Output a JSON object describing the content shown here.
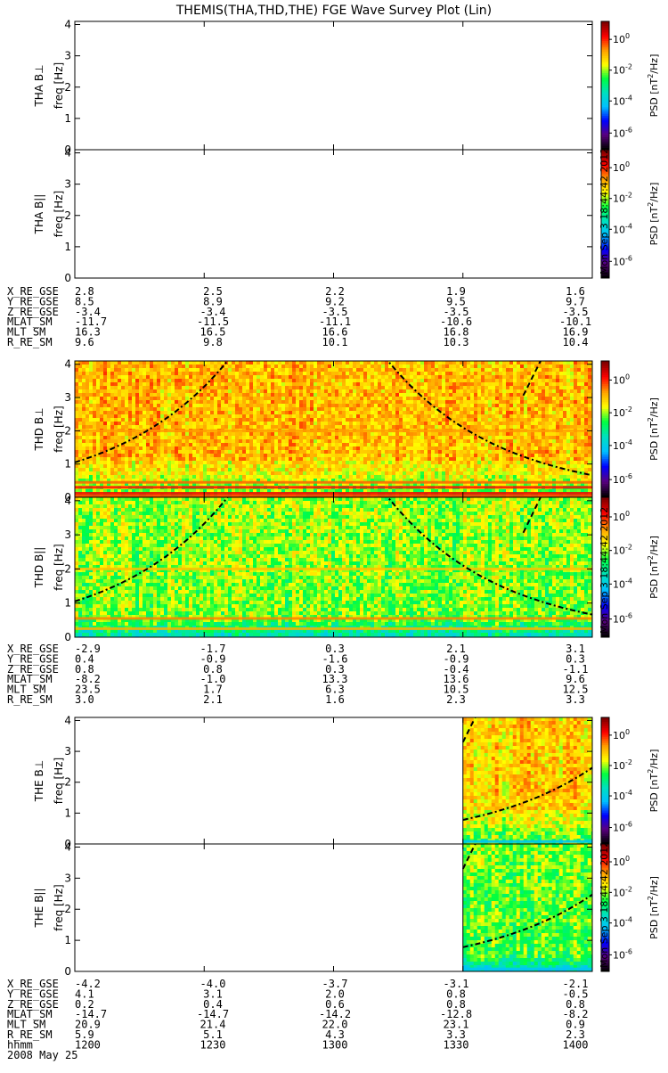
{
  "chart_data": {
    "type": "heatmap",
    "title": "THEMIS(THA,THD,THE) FGE Wave Survey Plot (Lin)",
    "x_unit_label": "hhmm",
    "date": "2008 May 25",
    "x_ticks": [
      "1200",
      "1230",
      "1300",
      "1330",
      "1400"
    ],
    "xlim": [
      "12:00",
      "14:00"
    ],
    "y_ticks": [
      "0",
      "1",
      "2",
      "3",
      "4"
    ],
    "ylim": [
      0,
      4.1
    ],
    "ylabel": "freq [Hz]",
    "colorbar": {
      "label": "PSD [nT²/Hz]",
      "label_base": "PSD [nT",
      "label_tail": "/Hz]",
      "scale": "log",
      "range": [
        1e-06,
        10
      ],
      "tick_labels": [
        {
          "base": "10",
          "exp": "0"
        },
        {
          "base": "10",
          "exp": "-2"
        },
        {
          "base": "10",
          "exp": "-4"
        },
        {
          "base": "10",
          "exp": "-6"
        }
      ],
      "colormap": [
        "#000000",
        "#5a0080",
        "#0000ff",
        "#00bfff",
        "#00e0c0",
        "#00ff40",
        "#ffff00",
        "#ffa000",
        "#ff0000",
        "#800000"
      ]
    },
    "timestamp": "Mon Sep 3 18:44:42 2012",
    "probes": [
      {
        "probe": "THA",
        "panels": [
          {
            "name": "THA B⊥",
            "ylabel_probe": "THA B⊥",
            "has_data": false
          },
          {
            "name": "THA B||",
            "ylabel_probe": "THA B||",
            "has_data": false
          }
        ],
        "ephemeris": [
          {
            "label": "X_RE_GSE",
            "values": [
              "2.8",
              "2.5",
              "2.2",
              "1.9",
              "1.6"
            ]
          },
          {
            "label": "Y_RE_GSE",
            "values": [
              "8.5",
              "8.9",
              "9.2",
              "9.5",
              "9.7"
            ]
          },
          {
            "label": "Z_RE_GSE",
            "values": [
              "-3.4",
              "-3.4",
              "-3.5",
              "-3.5",
              "-3.5"
            ]
          },
          {
            "label": "MLAT_SM",
            "values": [
              "-11.7",
              "-11.5",
              "-11.1",
              "-10.6",
              "-10.1"
            ]
          },
          {
            "label": "MLT_SM",
            "values": [
              "16.3",
              "16.5",
              "16.6",
              "16.8",
              "16.9"
            ]
          },
          {
            "label": "R_RE_SM",
            "values": [
              "9.6",
              "9.8",
              "10.1",
              "10.3",
              "10.4"
            ]
          }
        ]
      },
      {
        "probe": "THD",
        "panels": [
          {
            "name": "THD B⊥",
            "ylabel_probe": "THD B⊥",
            "has_data": true,
            "data_start": "12:00"
          },
          {
            "name": "THD B||",
            "ylabel_probe": "THD B||",
            "has_data": true,
            "data_start": "12:00"
          }
        ],
        "ephemeris": [
          {
            "label": "X_RE_GSE",
            "values": [
              "-2.9",
              "-1.7",
              "0.3",
              "2.1",
              "3.1"
            ]
          },
          {
            "label": "Y_RE_GSE",
            "values": [
              "0.4",
              "-0.9",
              "-1.6",
              "-0.9",
              "0.3"
            ]
          },
          {
            "label": "Z_RE_GSE",
            "values": [
              "0.8",
              "0.8",
              "0.3",
              "-0.4",
              "-1.1"
            ]
          },
          {
            "label": "MLAT_SM",
            "values": [
              "-8.2",
              "-1.0",
              "13.3",
              "13.6",
              "9.6"
            ]
          },
          {
            "label": "MLT_SM",
            "values": [
              "23.5",
              "1.7",
              "6.3",
              "10.5",
              "12.5"
            ]
          },
          {
            "label": "R_RE_SM",
            "values": [
              "3.0",
              "2.1",
              "1.6",
              "2.3",
              "3.3"
            ]
          }
        ]
      },
      {
        "probe": "THE",
        "panels": [
          {
            "name": "THE B⊥",
            "ylabel_probe": "THE B⊥",
            "has_data": true,
            "data_start": "13:30"
          },
          {
            "name": "THE B||",
            "ylabel_probe": "THE B||",
            "has_data": true,
            "data_start": "13:30"
          }
        ],
        "ephemeris": [
          {
            "label": "X_RE_GSE",
            "values": [
              "-4.2",
              "-4.0",
              "-3.7",
              "-3.1",
              "-2.1"
            ]
          },
          {
            "label": "Y_RE_GSE",
            "values": [
              "4.1",
              "3.1",
              "2.0",
              "0.8",
              "-0.5"
            ]
          },
          {
            "label": "Z_RE_GSE",
            "values": [
              "0.2",
              "0.4",
              "0.6",
              "0.8",
              "0.8"
            ]
          },
          {
            "label": "MLAT_SM",
            "values": [
              "-14.7",
              "-14.7",
              "-14.2",
              "-12.8",
              "-8.2"
            ]
          },
          {
            "label": "MLT_SM",
            "values": [
              "20.9",
              "21.4",
              "22.0",
              "23.1",
              "0.9"
            ]
          },
          {
            "label": "R_RE_SM",
            "values": [
              "5.9",
              "5.1",
              "4.3",
              "3.3",
              "2.3"
            ]
          }
        ]
      }
    ]
  }
}
